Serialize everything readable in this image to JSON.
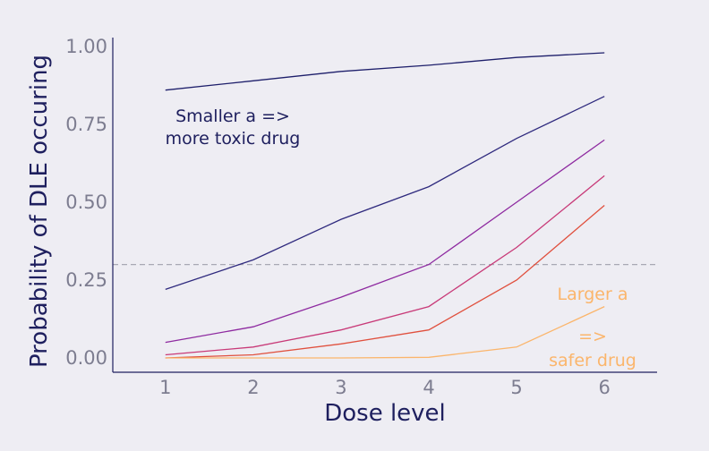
{
  "chart_data": {
    "type": "line",
    "x": [
      1,
      2,
      3,
      4,
      5,
      6
    ],
    "xlabel": "Dose level",
    "ylabel": "Probability of DLE occuring",
    "xlim": [
      0.4,
      6.6
    ],
    "ylim": [
      0,
      1
    ],
    "x_ticks": [
      "1",
      "2",
      "3",
      "4",
      "5",
      "6"
    ],
    "y_ticks": [
      "0.00",
      "0.25",
      "0.50",
      "0.75",
      "1.00"
    ],
    "threshold": 0.3,
    "grid": false,
    "series": [
      {
        "values": [
          0.86,
          0.89,
          0.92,
          0.94,
          0.965,
          0.98
        ],
        "color": "#1e1f6b"
      },
      {
        "values": [
          0.22,
          0.315,
          0.445,
          0.55,
          0.705,
          0.84
        ],
        "color": "#2f2a7e"
      },
      {
        "values": [
          0.05,
          0.1,
          0.195,
          0.3,
          0.5,
          0.7
        ],
        "color": "#8e2aa0"
      },
      {
        "values": [
          0.01,
          0.035,
          0.09,
          0.165,
          0.355,
          0.585
        ],
        "color": "#c83a78"
      },
      {
        "values": [
          0.0,
          0.01,
          0.045,
          0.09,
          0.25,
          0.49
        ],
        "color": "#e0503e"
      },
      {
        "values": [
          0.0,
          0.0,
          0.0,
          0.002,
          0.035,
          0.165
        ],
        "color": "#fbb56b"
      }
    ],
    "annotations": [
      {
        "lines": [
          "Smaller a =>",
          "more toxic drug"
        ],
        "color": "#1e1f5e"
      },
      {
        "lines": [
          "Larger a",
          "=>",
          "safer drug"
        ],
        "color": "#fbb56b"
      }
    ]
  }
}
